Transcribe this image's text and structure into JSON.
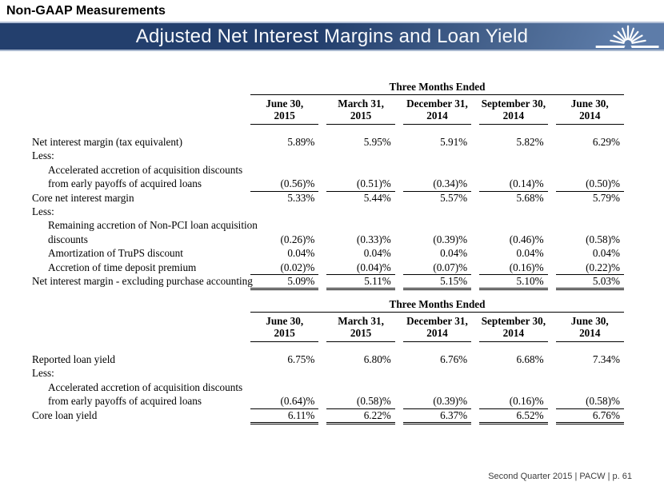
{
  "slide": {
    "eyebrow": "Non-GAAP Measurements",
    "title": "Adjusted Net Interest Margins and Loan Yield",
    "footer": "Second Quarter 2015 | PACW | p. 61"
  },
  "colors": {
    "banner_dark": "#233f6d",
    "banner_mid": "#48658f",
    "banner_light": "#5d7ca9",
    "banner_edge_top": "#b3c0d6",
    "banner_edge_bottom": "#a9b8cf",
    "title_text": "#f7f9fc",
    "body_text": "#000000",
    "footer_text": "#3c3c3c"
  },
  "tables": [
    {
      "name": "adjusted-net-interest-margins",
      "period_header": "Three Months Ended",
      "columns": [
        {
          "line1": "June 30,",
          "line2": "2015"
        },
        {
          "line1": "March 31,",
          "line2": "2015"
        },
        {
          "line1": "December 31,",
          "line2": "2014"
        },
        {
          "line1": "September 30,",
          "line2": "2014"
        },
        {
          "line1": "June 30,",
          "line2": "2014"
        }
      ],
      "rows": [
        {
          "label": "Net interest margin (tax equivalent)",
          "indent": 0,
          "values": [
            "5.89%",
            "5.95%",
            "5.91%",
            "5.82%",
            "6.29%"
          ],
          "rule": ""
        },
        {
          "label": "Less:",
          "indent": 0,
          "values": null,
          "rule": ""
        },
        {
          "label": "Accelerated accretion of acquisition discounts",
          "indent": 1,
          "values": null,
          "rule": ""
        },
        {
          "label": "from early payoffs of acquired loans",
          "indent": 1,
          "values": [
            "(0.56)%",
            "(0.51)%",
            "(0.34)%",
            "(0.14)%",
            "(0.50)%"
          ],
          "rule": "single"
        },
        {
          "label": "Core net interest margin",
          "indent": 0,
          "values": [
            "5.33%",
            "5.44%",
            "5.57%",
            "5.68%",
            "5.79%"
          ],
          "rule": ""
        },
        {
          "label": "Less:",
          "indent": 0,
          "values": null,
          "rule": ""
        },
        {
          "label": "Remaining accretion of Non-PCI loan acquisition",
          "indent": 1,
          "values": null,
          "rule": ""
        },
        {
          "label": "discounts",
          "indent": 1,
          "values": [
            "(0.26)%",
            "(0.33)%",
            "(0.39)%",
            "(0.46)%",
            "(0.58)%"
          ],
          "rule": ""
        },
        {
          "label": "Amortization of TruPS discount",
          "indent": 1,
          "values": [
            "0.04%",
            "0.04%",
            "0.04%",
            "0.04%",
            "0.04%"
          ],
          "rule": ""
        },
        {
          "label": "Accretion of time deposit premium",
          "indent": 1,
          "values": [
            "(0.02)%",
            "(0.04)%",
            "(0.07)%",
            "(0.16)%",
            "(0.22)%"
          ],
          "rule": "single"
        },
        {
          "label": "Net interest margin - excluding purchase accounting",
          "indent": 0,
          "values": [
            "5.09%",
            "5.11%",
            "5.15%",
            "5.10%",
            "5.03%"
          ],
          "rule": "double"
        }
      ]
    },
    {
      "name": "loan-yield",
      "period_header": "Three Months Ended",
      "columns": [
        {
          "line1": "June 30,",
          "line2": "2015"
        },
        {
          "line1": "March 31,",
          "line2": "2015"
        },
        {
          "line1": "December 31,",
          "line2": "2014"
        },
        {
          "line1": "September 30,",
          "line2": "2014"
        },
        {
          "line1": "June 30,",
          "line2": "2014"
        }
      ],
      "rows": [
        {
          "label": "Reported loan yield",
          "indent": 0,
          "values": [
            "6.75%",
            "6.80%",
            "6.76%",
            "6.68%",
            "7.34%"
          ],
          "rule": ""
        },
        {
          "label": "Less:",
          "indent": 0,
          "values": null,
          "rule": ""
        },
        {
          "label": "Accelerated accretion of acquisition discounts",
          "indent": 1,
          "values": null,
          "rule": ""
        },
        {
          "label": "from early payoffs of acquired loans",
          "indent": 1,
          "values": [
            "(0.64)%",
            "(0.58)%",
            "(0.39)%",
            "(0.16)%",
            "(0.58)%"
          ],
          "rule": "single"
        },
        {
          "label": "Core loan yield",
          "indent": 0,
          "values": [
            "6.11%",
            "6.22%",
            "6.37%",
            "6.52%",
            "6.76%"
          ],
          "rule": "double"
        }
      ]
    }
  ]
}
